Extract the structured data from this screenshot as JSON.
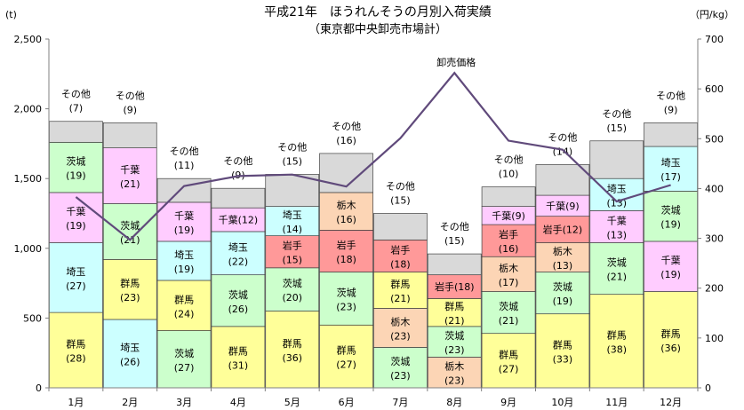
{
  "chart_data": {
    "type": "bar",
    "title": "平成21年　ほうれんそうの月別入荷実績",
    "subtitle": "（東京都中央卸売市場計）",
    "y_left_unit": "(t)",
    "y_right_unit": "（円/kg）",
    "ylim": [
      0,
      2500
    ],
    "y2lim": [
      0,
      700
    ],
    "y_ticks": [
      "0",
      "500",
      "1,000",
      "1,500",
      "2,000",
      "2,500"
    ],
    "y2_ticks": [
      "0",
      "100",
      "200",
      "300",
      "400",
      "500",
      "600",
      "700"
    ],
    "categories": [
      "1月",
      "2月",
      "3月",
      "4月",
      "5月",
      "6月",
      "7月",
      "8月",
      "9月",
      "10月",
      "11月",
      "12月"
    ],
    "stacks": [
      [
        {
          "name": "群馬",
          "pct": "(28)",
          "value": 540
        },
        {
          "name": "埼玉",
          "pct": "(27)",
          "value": 500
        },
        {
          "name": "千葉",
          "pct": "(19)",
          "value": 360
        },
        {
          "name": "茨城",
          "pct": "(19)",
          "value": 360
        },
        {
          "name": "その他",
          "pct": "(7)",
          "value": 150
        }
      ],
      [
        {
          "name": "埼玉",
          "pct": "(26)",
          "value": 490
        },
        {
          "name": "群馬",
          "pct": "(23)",
          "value": 430
        },
        {
          "name": "茨城",
          "pct": "(21)",
          "value": 400
        },
        {
          "name": "千葉",
          "pct": "(21)",
          "value": 400
        },
        {
          "name": "その他",
          "pct": "(9)",
          "value": 180
        }
      ],
      [
        {
          "name": "茨城",
          "pct": "(27)",
          "value": 410
        },
        {
          "name": "群馬",
          "pct": "(24)",
          "value": 360
        },
        {
          "name": "埼玉",
          "pct": "(19)",
          "value": 280
        },
        {
          "name": "千葉",
          "pct": "(19)",
          "value": 280
        },
        {
          "name": "その他",
          "pct": "(11)",
          "value": 170
        }
      ],
      [
        {
          "name": "群馬",
          "pct": "(31)",
          "value": 440
        },
        {
          "name": "茨城",
          "pct": "(26)",
          "value": 370
        },
        {
          "name": "埼玉",
          "pct": "(22)",
          "value": 310
        },
        {
          "name": "千葉",
          "pct": "(12)",
          "value": 170
        },
        {
          "name": "その他",
          "pct": "(9)",
          "value": 140
        }
      ],
      [
        {
          "name": "群馬",
          "pct": "(36)",
          "value": 550
        },
        {
          "name": "茨城",
          "pct": "(20)",
          "value": 310
        },
        {
          "name": "岩手",
          "pct": "(15)",
          "value": 230
        },
        {
          "name": "埼玉",
          "pct": "(14)",
          "value": 210
        },
        {
          "name": "その他",
          "pct": "(15)",
          "value": 230
        }
      ],
      [
        {
          "name": "群馬",
          "pct": "(27)",
          "value": 450
        },
        {
          "name": "茨城",
          "pct": "(23)",
          "value": 380
        },
        {
          "name": "岩手",
          "pct": "(18)",
          "value": 300
        },
        {
          "name": "栃木",
          "pct": "(16)",
          "value": 270
        },
        {
          "name": "その他",
          "pct": "(16)",
          "value": 280
        }
      ],
      [
        {
          "name": "茨城",
          "pct": "(23)",
          "value": 290
        },
        {
          "name": "栃木",
          "pct": "(23)",
          "value": 280
        },
        {
          "name": "群馬",
          "pct": "(21)",
          "value": 260
        },
        {
          "name": "岩手",
          "pct": "(18)",
          "value": 230
        },
        {
          "name": "その他",
          "pct": "(15)",
          "value": 190
        }
      ],
      [
        {
          "name": "栃木",
          "pct": "(23)",
          "value": 220
        },
        {
          "name": "茨城",
          "pct": "(23)",
          "value": 220
        },
        {
          "name": "群馬",
          "pct": "(21)",
          "value": 200
        },
        {
          "name": "岩手",
          "pct": "(18)",
          "value": 170
        },
        {
          "name": "その他",
          "pct": "(15)",
          "value": 150
        }
      ],
      [
        {
          "name": "群馬",
          "pct": "(27)",
          "value": 390
        },
        {
          "name": "茨城",
          "pct": "(21)",
          "value": 300
        },
        {
          "name": "栃木",
          "pct": "(17)",
          "value": 250
        },
        {
          "name": "岩手",
          "pct": "(16)",
          "value": 230
        },
        {
          "name": "千葉",
          "pct": "(9)",
          "value": 130
        },
        {
          "name": "その他",
          "pct": "(10)",
          "value": 140
        }
      ],
      [
        {
          "name": "群馬",
          "pct": "(33)",
          "value": 530
        },
        {
          "name": "茨城",
          "pct": "(19)",
          "value": 300
        },
        {
          "name": "栃木",
          "pct": "(13)",
          "value": 210
        },
        {
          "name": "岩手",
          "pct": "(12)",
          "value": 190
        },
        {
          "name": "千葉",
          "pct": "(9)",
          "value": 150
        },
        {
          "name": "その他",
          "pct": "(14)",
          "value": 220
        }
      ],
      [
        {
          "name": "群馬",
          "pct": "(38)",
          "value": 670
        },
        {
          "name": "茨城",
          "pct": "(21)",
          "value": 370
        },
        {
          "name": "千葉",
          "pct": "(13)",
          "value": 230
        },
        {
          "name": "埼玉",
          "pct": "(13)",
          "value": 230
        },
        {
          "name": "その他",
          "pct": "(15)",
          "value": 270
        }
      ],
      [
        {
          "name": "群馬",
          "pct": "(36)",
          "value": 690
        },
        {
          "name": "千葉",
          "pct": "(19)",
          "value": 360
        },
        {
          "name": "茨城",
          "pct": "(19)",
          "value": 360
        },
        {
          "name": "埼玉",
          "pct": "(17)",
          "value": 320
        },
        {
          "name": "その他",
          "pct": "(9)",
          "value": 170
        }
      ]
    ],
    "line_series": {
      "name": "卸売価格",
      "axis": "right",
      "values": [
        383,
        297,
        405,
        425,
        428,
        404,
        501,
        632,
        496,
        478,
        374,
        407
      ]
    },
    "colors": {
      "群馬": "#ffff99",
      "埼玉": "#ccffff",
      "千葉": "#ffccff",
      "茨城": "#ccffcc",
      "岩手": "#ff9999",
      "栃木": "#fcd5b5",
      "その他": "#d9d9d9",
      "line": "#604a7b",
      "axis": "#808080"
    }
  }
}
